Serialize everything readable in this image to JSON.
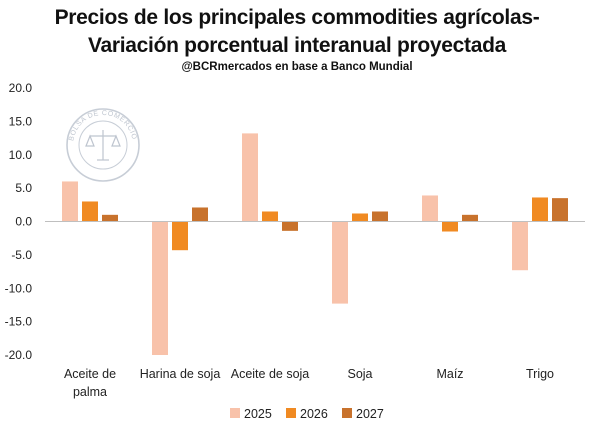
{
  "header": {
    "title_line1": "Precios de los principales commodities agrícolas-",
    "title_line2": "Variación porcentual interanual proyectada",
    "subtitle": "@BCRmercados en base a Banco Mundial"
  },
  "watermark": {
    "text": "BOLSA DE COMERCIO DE ROSARIO",
    "icon": "scales-of-justice-seal"
  },
  "colors": {
    "2025": "#f8c2aa",
    "2026": "#f08a22",
    "2027": "#c8722c",
    "axis": "#bfbfbf"
  },
  "chart_data": {
    "type": "bar",
    "categories": [
      [
        "Aceite de",
        "palma"
      ],
      [
        "Harina de soja"
      ],
      [
        "Aceite de soja"
      ],
      [
        "Soja"
      ],
      [
        "Maíz"
      ],
      [
        "Trigo"
      ]
    ],
    "series": [
      {
        "name": "2025",
        "values": [
          6.0,
          -20.0,
          13.2,
          -12.3,
          3.9,
          -7.3
        ]
      },
      {
        "name": "2026",
        "values": [
          3.0,
          -4.3,
          1.5,
          1.2,
          -1.5,
          3.6
        ]
      },
      {
        "name": "2027",
        "values": [
          1.0,
          2.1,
          -1.4,
          1.5,
          1.0,
          3.5
        ]
      }
    ],
    "ylim": [
      -20,
      20
    ],
    "yticks": [
      "20.0",
      "15.0",
      "10.0",
      "5.0",
      "0.0",
      "-5.0",
      "-10.0",
      "-15.0",
      "-20.0"
    ],
    "grid": false,
    "legend": "bottom"
  }
}
